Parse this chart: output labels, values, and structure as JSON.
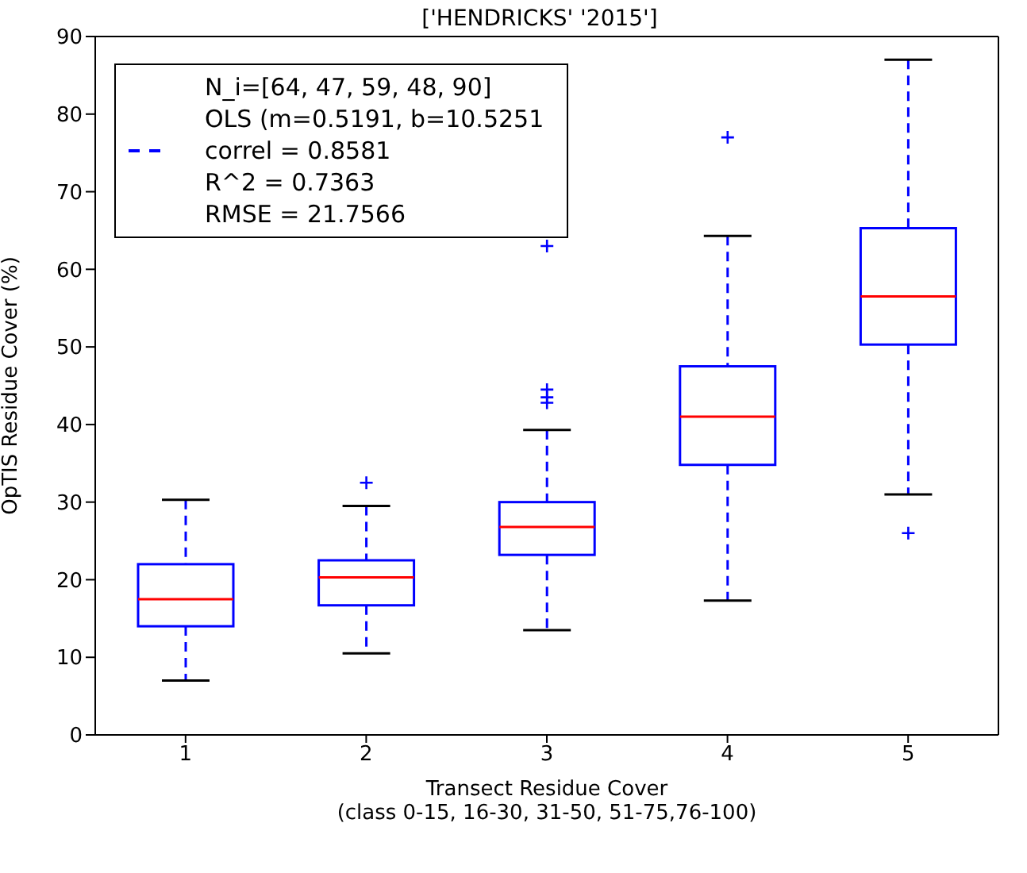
{
  "chart_data": {
    "type": "box",
    "title": "['HENDRICKS' '2015']",
    "xlabel": "Transect Residue Cover\n(class 0-15, 16-30, 31-50, 51-75,76-100)",
    "ylabel": "OpTIS Residue Cover (%)",
    "categories": [
      "1",
      "2",
      "3",
      "4",
      "5"
    ],
    "series": [
      {
        "color": "#0000ff",
        "boxes": [
          {
            "low": 7,
            "q1": 14,
            "median": 17.5,
            "q3": 22,
            "high": 30.3
          },
          {
            "low": 10.5,
            "q1": 16.7,
            "median": 20.3,
            "q3": 22.5,
            "high": 29.5,
            "outliers": [
              32.5
            ]
          },
          {
            "low": 13.5,
            "q1": 23.2,
            "median": 26.8,
            "q3": 30,
            "high": 39.3,
            "outliers": [
              63,
              44.5,
              43.5,
              42.8
            ]
          },
          {
            "low": 17.3,
            "q1": 34.8,
            "median": 41,
            "q3": 47.5,
            "high": 64.3,
            "outliers": [
              77
            ]
          },
          {
            "low": 31,
            "q1": 50.3,
            "median": 56.5,
            "q3": 65.3,
            "high": 87,
            "outliers": [
              26
            ]
          }
        ]
      }
    ],
    "ylim": [
      0,
      90
    ],
    "yticks": [
      0,
      10,
      20,
      30,
      40,
      50,
      60,
      70,
      80,
      90
    ],
    "grid": false,
    "annotations": [
      "N_i=[64, 47, 59, 48, 90]",
      "OLS (m=0.5191, b=10.5251",
      "correl = 0.8581",
      "R^2 = 0.7363",
      "RMSE = 21.7566"
    ]
  }
}
